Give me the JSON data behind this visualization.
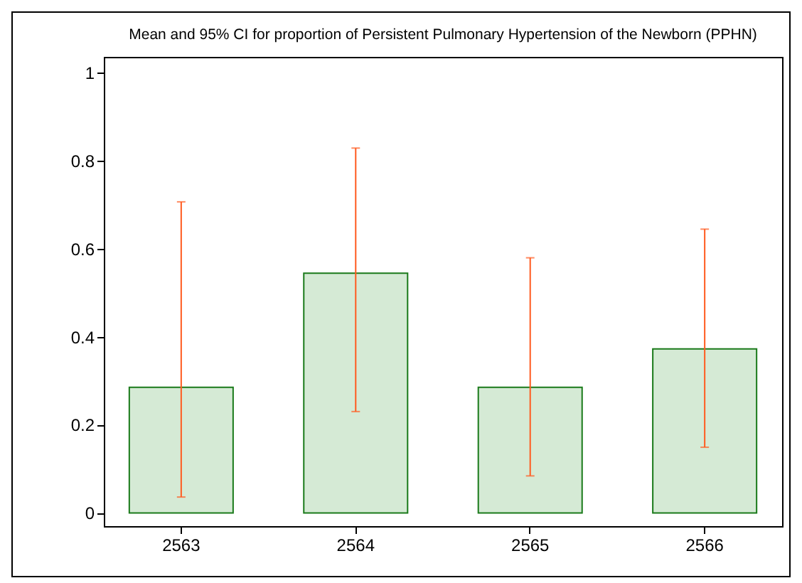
{
  "chart_data": {
    "type": "bar",
    "title": "Mean and 95% CI for proportion of Persistent Pulmonary Hypertension of the Newborn (PPHN)",
    "categories": [
      "2563",
      "2564",
      "2565",
      "2566"
    ],
    "values": [
      0.285,
      0.544,
      0.285,
      0.372
    ],
    "errors": [
      [
        0.036,
        0.706
      ],
      [
        0.23,
        0.828
      ],
      [
        0.084,
        0.579
      ],
      [
        0.149,
        0.644
      ]
    ],
    "color": "#d5ead5",
    "ylim": [
      -0.03,
      1.035
    ],
    "yticks": [
      0,
      0.2,
      0.4,
      0.6,
      0.8,
      1
    ],
    "grid": false
  }
}
